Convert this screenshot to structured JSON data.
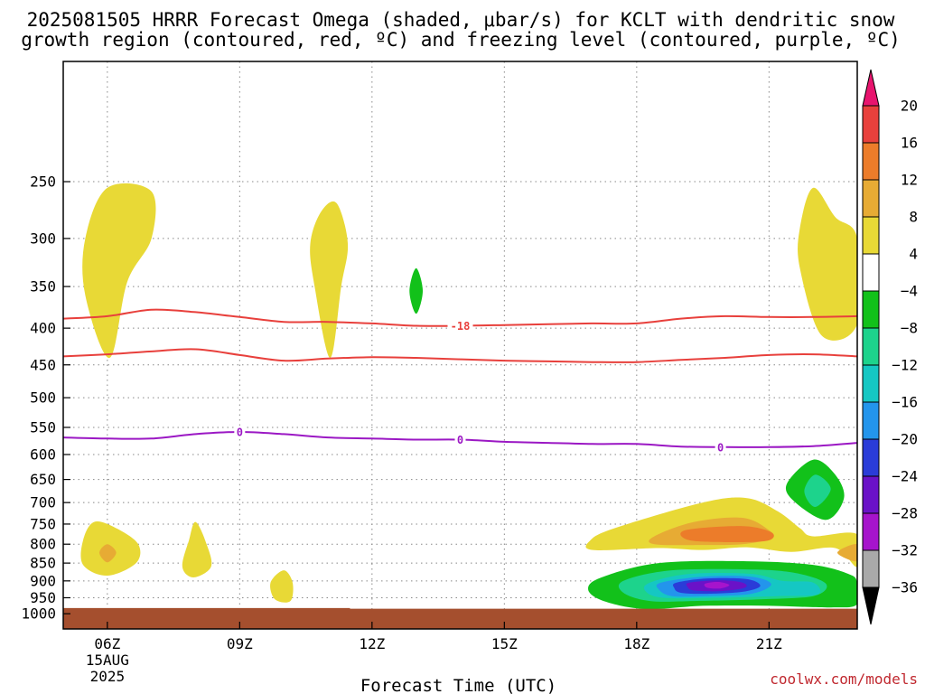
{
  "chart_data": {
    "type": "contour",
    "title_lines": [
      "2025081505 HRRR Forecast Omega (shaded, μbar/s) for KCLT with dendritic snow",
      "growth region (contoured, red, ºC) and freezing level (contoured, purple, ºC)"
    ],
    "xlabel": "Forecast Time (UTC)",
    "x_ticks": [
      "06Z",
      "09Z",
      "12Z",
      "15Z",
      "18Z",
      "21Z"
    ],
    "x_tick_hours": [
      6,
      9,
      12,
      15,
      18,
      21
    ],
    "x_date_lines": [
      "15AUG",
      "2025"
    ],
    "xlim": [
      5,
      23
    ],
    "y_ticks": [
      250,
      300,
      350,
      400,
      450,
      500,
      550,
      600,
      650,
      700,
      750,
      800,
      850,
      900,
      950,
      1000
    ],
    "ylim": [
      1050,
      170
    ],
    "y_scale": "log",
    "grid": "dotted",
    "colorbar": {
      "labels": [
        "20",
        "16",
        "12",
        "8",
        "4",
        "−4",
        "−8",
        "−12",
        "−16",
        "−20",
        "−24",
        "−28",
        "−32",
        "−36"
      ],
      "colors": [
        "#e8146e",
        "#e8403c",
        "#ec7c2a",
        "#e7ab34",
        "#e8d936",
        "#ffffff",
        "#12c11a",
        "#1dd38c",
        "#15c7c3",
        "#2395ec",
        "#2a3cd8",
        "#6a12c8",
        "#a614cc",
        "#a9a9a9",
        "#000000"
      ]
    },
    "omega_regions": [
      {
        "value_band": "4-8",
        "color": "#e8d936",
        "points": [
          [
            6.0,
            255
          ],
          [
            7.0,
            258
          ],
          [
            7.0,
            300
          ],
          [
            6.45,
            345
          ],
          [
            6.05,
            440
          ],
          [
            5.5,
            360
          ],
          [
            5.5,
            300
          ]
        ]
      },
      {
        "value_band": "4-8",
        "color": "#e8d936",
        "points": [
          [
            11.2,
            268
          ],
          [
            11.45,
            305
          ],
          [
            11.3,
            350
          ],
          [
            11.05,
            440
          ],
          [
            10.7,
            350
          ],
          [
            10.6,
            305
          ],
          [
            10.85,
            275
          ]
        ]
      },
      {
        "value_band": "-8--4",
        "color": "#12c11a",
        "points": [
          [
            13.0,
            330
          ],
          [
            13.15,
            355
          ],
          [
            13.0,
            382
          ],
          [
            12.85,
            355
          ]
        ]
      },
      {
        "value_band": "4-8",
        "color": "#e8d936",
        "points": [
          [
            22.0,
            255
          ],
          [
            22.5,
            280
          ],
          [
            23.0,
            300
          ],
          [
            23.0,
            395
          ],
          [
            22.2,
            410
          ],
          [
            21.7,
            330
          ],
          [
            21.7,
            290
          ]
        ]
      },
      {
        "value_band": "4-8",
        "color": "#e8d936",
        "points": [
          [
            5.7,
            745
          ],
          [
            6.2,
            760
          ],
          [
            6.7,
            800
          ],
          [
            6.65,
            850
          ],
          [
            6.0,
            885
          ],
          [
            5.45,
            855
          ],
          [
            5.45,
            790
          ]
        ]
      },
      {
        "value_band": "8-12",
        "color": "#e7ab34",
        "points": [
          [
            6.0,
            800
          ],
          [
            6.2,
            822
          ],
          [
            6.0,
            848
          ],
          [
            5.82,
            822
          ]
        ]
      },
      {
        "value_band": "4-8",
        "color": "#e8d936",
        "points": [
          [
            8.0,
            745
          ],
          [
            8.25,
            800
          ],
          [
            8.35,
            860
          ],
          [
            7.95,
            890
          ],
          [
            7.7,
            860
          ],
          [
            7.85,
            790
          ]
        ]
      },
      {
        "value_band": "4-8",
        "color": "#e8d936",
        "points": [
          [
            10.0,
            870
          ],
          [
            10.2,
            905
          ],
          [
            10.15,
            960
          ],
          [
            9.8,
            955
          ],
          [
            9.7,
            905
          ]
        ]
      },
      {
        "value_band": "4-8",
        "color": "#e8d936",
        "points": [
          [
            17.5,
            760
          ],
          [
            19.5,
            700
          ],
          [
            20.5,
            690
          ],
          [
            21.2,
            720
          ],
          [
            21.7,
            760
          ],
          [
            22.0,
            780
          ],
          [
            23.0,
            775
          ],
          [
            23.0,
            860
          ],
          [
            22.5,
            810
          ],
          [
            21.5,
            820
          ],
          [
            20.5,
            808
          ],
          [
            19.5,
            815
          ],
          [
            18.5,
            810
          ],
          [
            17.0,
            815
          ],
          [
            16.95,
            790
          ]
        ]
      },
      {
        "value_band": "8-12",
        "color": "#e7ab34",
        "points": [
          [
            18.4,
            780
          ],
          [
            19.3,
            745
          ],
          [
            20.4,
            735
          ],
          [
            21.0,
            765
          ],
          [
            21.05,
            785
          ],
          [
            20.4,
            800
          ],
          [
            19.5,
            802
          ],
          [
            18.4,
            800
          ]
        ]
      },
      {
        "value_band": "12-16",
        "color": "#ec7c2a",
        "points": [
          [
            19.1,
            765
          ],
          [
            20.4,
            755
          ],
          [
            21.05,
            770
          ],
          [
            21.0,
            790
          ],
          [
            20.3,
            795
          ],
          [
            19.2,
            790
          ]
        ]
      },
      {
        "value_band": "8-12",
        "color": "#e7ab34",
        "points": [
          [
            23.0,
            800
          ],
          [
            22.55,
            822
          ],
          [
            23.0,
            845
          ]
        ]
      },
      {
        "value_band": "-8--4",
        "color": "#12c11a",
        "points": [
          [
            17.2,
            890
          ],
          [
            18.5,
            850
          ],
          [
            20.5,
            845
          ],
          [
            22.0,
            855
          ],
          [
            22.8,
            880
          ],
          [
            23.0,
            905
          ],
          [
            23.0,
            970
          ],
          [
            22.4,
            980
          ],
          [
            21.0,
            975
          ],
          [
            19.5,
            975
          ],
          [
            18.2,
            985
          ],
          [
            17.25,
            960
          ],
          [
            16.9,
            925
          ]
        ]
      },
      {
        "value_band": "-12--8",
        "color": "#1dd38c",
        "points": [
          [
            17.7,
            900
          ],
          [
            18.8,
            870
          ],
          [
            20.7,
            868
          ],
          [
            21.7,
            880
          ],
          [
            22.3,
            910
          ],
          [
            22.0,
            945
          ],
          [
            20.8,
            955
          ],
          [
            19.3,
            960
          ],
          [
            18.3,
            960
          ],
          [
            17.7,
            935
          ]
        ]
      },
      {
        "value_band": "-16--12",
        "color": "#15c7c3",
        "points": [
          [
            18.3,
            905
          ],
          [
            19.2,
            880
          ],
          [
            20.6,
            880
          ],
          [
            21.3,
            900
          ],
          [
            22.0,
            905
          ],
          [
            22.1,
            940
          ],
          [
            21.2,
            945
          ],
          [
            19.8,
            950
          ],
          [
            18.6,
            950
          ],
          [
            18.2,
            930
          ]
        ]
      },
      {
        "value_band": "-20--16",
        "color": "#2395ec",
        "points": [
          [
            18.55,
            905
          ],
          [
            19.5,
            888
          ],
          [
            20.6,
            888
          ],
          [
            21.05,
            910
          ],
          [
            20.6,
            938
          ],
          [
            19.6,
            945
          ],
          [
            18.8,
            945
          ],
          [
            18.5,
            925
          ]
        ]
      },
      {
        "value_band": "-24--20",
        "color": "#2a3cd8",
        "points": [
          [
            18.9,
            905
          ],
          [
            19.6,
            893
          ],
          [
            20.5,
            895
          ],
          [
            20.8,
            915
          ],
          [
            20.4,
            932
          ],
          [
            19.6,
            938
          ],
          [
            19.0,
            935
          ],
          [
            18.85,
            920
          ]
        ]
      },
      {
        "value_band": "-28--24",
        "color": "#6a12c8",
        "points": [
          [
            19.2,
            905
          ],
          [
            19.9,
            898
          ],
          [
            20.4,
            905
          ],
          [
            20.45,
            920
          ],
          [
            19.9,
            930
          ],
          [
            19.3,
            928
          ],
          [
            19.15,
            917
          ]
        ]
      },
      {
        "value_band": "-32--28",
        "color": "#a614cc",
        "points": [
          [
            19.55,
            908
          ],
          [
            19.85,
            903
          ],
          [
            20.1,
            912
          ],
          [
            19.9,
            922
          ],
          [
            19.6,
            920
          ]
        ]
      },
      {
        "value_band": "-8--4",
        "color": "#12c11a",
        "points": [
          [
            22.0,
            610
          ],
          [
            22.5,
            640
          ],
          [
            22.7,
            690
          ],
          [
            22.3,
            740
          ],
          [
            21.6,
            700
          ],
          [
            21.4,
            660
          ]
        ]
      },
      {
        "value_band": "-12--8",
        "color": "#1dd38c",
        "points": [
          [
            22.05,
            640
          ],
          [
            22.4,
            670
          ],
          [
            22.05,
            710
          ],
          [
            21.8,
            675
          ]
        ]
      }
    ],
    "dendritic_contours": [
      {
        "label": "-18",
        "label_hour": 14.0,
        "color": "#e8403c",
        "points": [
          [
            5,
            388
          ],
          [
            6,
            385
          ],
          [
            7,
            377
          ],
          [
            8,
            380
          ],
          [
            9,
            386
          ],
          [
            10,
            392
          ],
          [
            11,
            392
          ],
          [
            12,
            394
          ],
          [
            13,
            397
          ],
          [
            14,
            397
          ],
          [
            15,
            396
          ],
          [
            16,
            395
          ],
          [
            17,
            394
          ],
          [
            18,
            394
          ],
          [
            19,
            388
          ],
          [
            20,
            385
          ],
          [
            21,
            386
          ],
          [
            22,
            386
          ],
          [
            23,
            385
          ]
        ]
      },
      {
        "label": "",
        "color": "#e8403c",
        "points": [
          [
            5,
            438
          ],
          [
            6,
            435
          ],
          [
            7,
            431
          ],
          [
            8,
            428
          ],
          [
            9,
            436
          ],
          [
            10,
            444
          ],
          [
            11,
            441
          ],
          [
            12,
            439
          ],
          [
            13,
            440
          ],
          [
            14,
            442
          ],
          [
            15,
            444
          ],
          [
            16,
            445
          ],
          [
            17,
            446
          ],
          [
            18,
            446
          ],
          [
            19,
            443
          ],
          [
            20,
            440
          ],
          [
            21,
            436
          ],
          [
            22,
            435
          ],
          [
            23,
            438
          ]
        ]
      }
    ],
    "freezing_contours": [
      {
        "label": "0",
        "label_hours": [
          9.0,
          14.0,
          19.9
        ],
        "color": "#9b18c4",
        "points": [
          [
            5,
            568
          ],
          [
            6,
            570
          ],
          [
            7,
            570
          ],
          [
            8,
            562
          ],
          [
            9,
            558
          ],
          [
            10,
            562
          ],
          [
            11,
            568
          ],
          [
            12,
            570
          ],
          [
            13,
            572
          ],
          [
            14,
            572
          ],
          [
            15,
            576
          ],
          [
            16,
            578
          ],
          [
            17,
            580
          ],
          [
            18,
            580
          ],
          [
            19,
            585
          ],
          [
            20,
            586
          ],
          [
            21,
            586
          ],
          [
            22,
            584
          ],
          [
            23,
            578
          ]
        ]
      }
    ],
    "terrain": {
      "color": "#a54f2e",
      "top_left_hpa": 982,
      "top_right_hpa": 984,
      "step_hour": 11.5
    },
    "credit": "coolwx.com/models"
  }
}
